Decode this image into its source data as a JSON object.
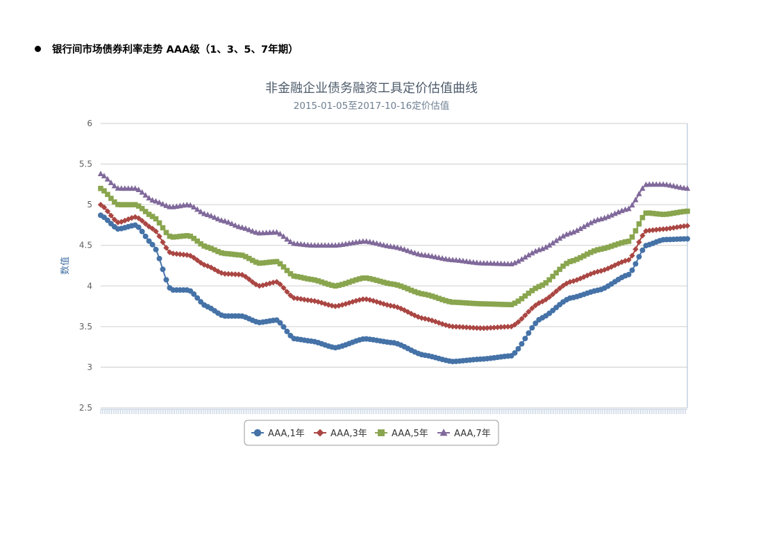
{
  "heading": {
    "text": "银行间市场债券利率走势 AAA级（1、3、5、7年期）"
  },
  "chart_data": {
    "type": "line",
    "title": "非金融企业债务融资工具定价估值曲线",
    "subtitle": "2015-01-05至2017-10-16定价估值",
    "ylabel": "数值",
    "xlabel": "",
    "ylim": [
      2.5,
      6
    ],
    "yticks": [
      "2.5",
      "3",
      "3.5",
      "4",
      "4.5",
      "5",
      "5.5",
      "6"
    ],
    "grid": true,
    "legend_position": "bottom",
    "x": [
      0,
      3,
      6,
      9,
      12,
      15,
      18,
      21,
      24,
      27,
      30,
      33,
      36,
      40,
      45,
      50,
      55,
      60,
      65,
      70,
      75,
      80,
      85,
      90,
      93,
      96,
      100
    ],
    "series": [
      {
        "name": "AAA,1年",
        "color": "#4572A7",
        "marker": "circle",
        "values": [
          4.87,
          4.7,
          4.75,
          4.5,
          3.95,
          3.95,
          3.75,
          3.63,
          3.63,
          3.55,
          3.58,
          3.35,
          3.32,
          3.24,
          3.35,
          3.3,
          3.15,
          3.07,
          3.1,
          3.14,
          3.6,
          3.85,
          3.95,
          4.14,
          4.5,
          4.57,
          4.58
        ]
      },
      {
        "name": "AAA,3年",
        "color": "#AA4643",
        "marker": "diamond",
        "values": [
          5.0,
          4.78,
          4.85,
          4.7,
          4.4,
          4.38,
          4.25,
          4.15,
          4.14,
          4.0,
          4.05,
          3.85,
          3.82,
          3.75,
          3.84,
          3.75,
          3.6,
          3.5,
          3.48,
          3.5,
          3.8,
          4.05,
          4.18,
          4.32,
          4.68,
          4.7,
          4.74
        ]
      },
      {
        "name": "AAA,5年",
        "color": "#89A54E",
        "marker": "square",
        "values": [
          5.2,
          5.0,
          5.0,
          4.85,
          4.6,
          4.62,
          4.48,
          4.4,
          4.38,
          4.28,
          4.3,
          4.12,
          4.08,
          4.0,
          4.1,
          4.02,
          3.9,
          3.8,
          3.78,
          3.77,
          4.0,
          4.3,
          4.45,
          4.55,
          4.9,
          4.88,
          4.92
        ]
      },
      {
        "name": "AAA,7年",
        "color": "#80699B",
        "marker": "triangle",
        "values": [
          5.38,
          5.2,
          5.2,
          5.05,
          4.97,
          5.0,
          4.88,
          4.8,
          4.72,
          4.65,
          4.66,
          4.52,
          4.5,
          4.5,
          4.55,
          4.48,
          4.38,
          4.32,
          4.28,
          4.27,
          4.45,
          4.65,
          4.82,
          4.95,
          5.25,
          5.25,
          5.2
        ]
      }
    ]
  }
}
